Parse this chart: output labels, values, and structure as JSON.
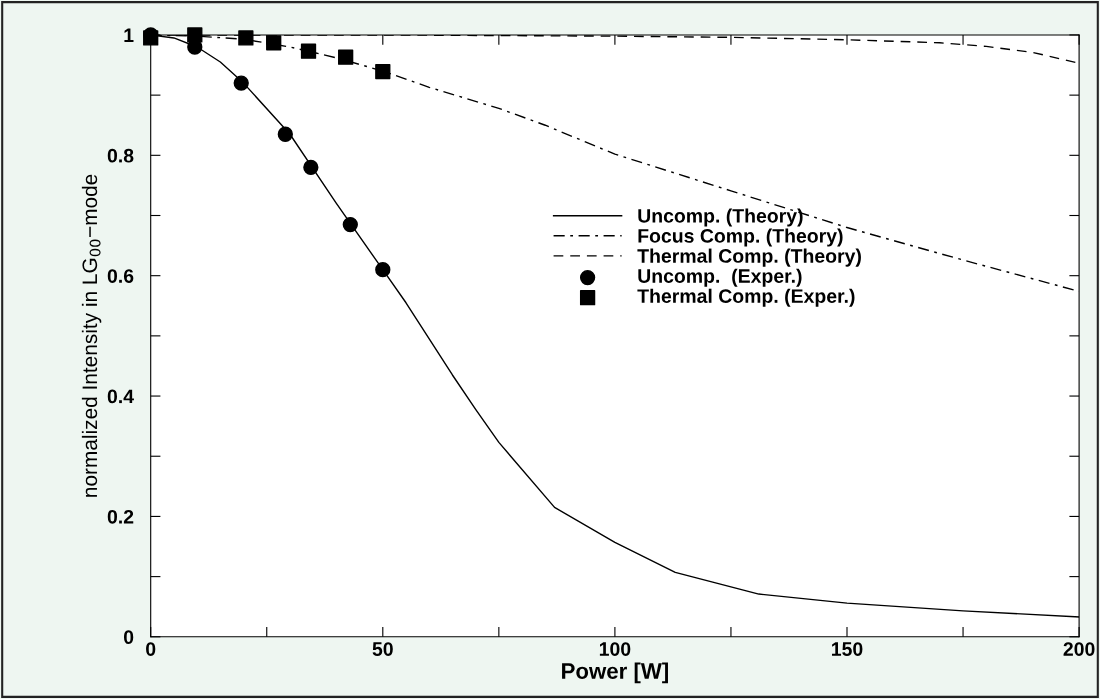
{
  "chart_data": {
    "type": "line",
    "xlabel": "Power [W]",
    "ylabel": "normalized Intensity in LG$_{00}$−mode",
    "xlim": [
      0,
      200
    ],
    "ylim": [
      0,
      1
    ],
    "xticks": [
      0,
      {
        "value": 25,
        "label": null
      },
      50,
      {
        "value": 75,
        "label": null
      },
      100,
      {
        "value": 125,
        "label": null
      },
      150,
      {
        "value": 175,
        "label": null
      },
      200
    ],
    "yticks": [
      0,
      {
        "value": 0.1,
        "label": null
      },
      0.2,
      {
        "value": 0.3,
        "label": null
      },
      0.4,
      {
        "value": 0.5,
        "label": null
      },
      0.6,
      {
        "value": 0.7,
        "label": null
      },
      0.8,
      {
        "value": 0.9,
        "label": null
      },
      1
    ],
    "grid": false,
    "legend": "center",
    "series": [
      {
        "name": "Uncomp. (Theory)",
        "color": "#000000",
        "line_style": "solid",
        "marker": "none",
        "x": [
          0,
          5,
          10,
          15,
          20,
          30,
          40,
          50,
          55,
          60,
          65,
          70,
          75,
          87,
          100,
          113,
          131,
          150,
          175,
          200
        ],
        "values": [
          1,
          0.995,
          0.98,
          0.955,
          0.92,
          0.835,
          0.72,
          0.61,
          0.555,
          0.495,
          0.435,
          0.378,
          0.323,
          0.215,
          0.157,
          0.107,
          0.071,
          0.056,
          0.043,
          0.033
        ]
      },
      {
        "name": "Focus Comp. (Theory)",
        "color": "#000000",
        "line_style": "dashdot",
        "marker": "none",
        "x": [
          0,
          10,
          20,
          30,
          40,
          50,
          60,
          75,
          85,
          100,
          125,
          150,
          175,
          200
        ],
        "values": [
          1,
          0.998,
          0.993,
          0.98,
          0.962,
          0.94,
          0.913,
          0.878,
          0.85,
          0.802,
          0.741,
          0.68,
          0.626,
          0.574
        ]
      },
      {
        "name": "Thermal Comp. (Theory)",
        "color": "#000000",
        "line_style": "dashed",
        "marker": "none",
        "x": [
          0,
          50,
          100,
          125,
          150,
          170,
          180,
          190,
          200
        ],
        "values": [
          1,
          1,
          0.998,
          0.996,
          0.992,
          0.987,
          0.981,
          0.971,
          0.953
        ]
      },
      {
        "name": "Uncomp.  (Exper.)",
        "color": "#000000",
        "type": "scatter",
        "marker": "circle",
        "x": [
          0,
          9.5,
          19.5,
          29,
          34.5,
          43,
          50
        ],
        "values": [
          1,
          0.98,
          0.92,
          0.835,
          0.78,
          0.685,
          0.61
        ]
      },
      {
        "name": "Thermal Comp. (Exper.)",
        "color": "#000000",
        "type": "scatter",
        "marker": "square",
        "x": [
          0,
          9.5,
          20.5,
          26.5,
          34,
          42,
          50
        ],
        "values": [
          0.995,
          1,
          0.995,
          0.987,
          0.973,
          0.963,
          0.939
        ]
      }
    ]
  }
}
